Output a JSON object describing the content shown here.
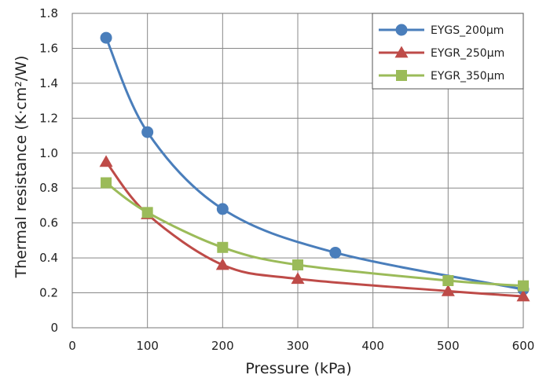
{
  "chart_data": {
    "type": "line",
    "xlabel": "Pressure (kPa)",
    "ylabel": "Thermal resistance (K·cm²/W)",
    "xlim": [
      0,
      600
    ],
    "ylim": [
      0,
      1.8
    ],
    "xticks": [
      "0",
      "100",
      "200",
      "300",
      "400",
      "500",
      "600"
    ],
    "yticks": [
      "0",
      "0.2",
      "0.4",
      "0.6",
      "0.8",
      "1.0",
      "1.2",
      "1.4",
      "1.6",
      "1.8"
    ],
    "grid": true,
    "legend_position": "top-right",
    "series": [
      {
        "name": "EYGS_200μm",
        "color": "#4a7ebb",
        "marker": "circle",
        "x": [
          45,
          100,
          200,
          350,
          600
        ],
        "y": [
          1.66,
          1.12,
          0.68,
          0.43,
          0.22
        ]
      },
      {
        "name": "EYGR_250μm",
        "color": "#be4b48",
        "marker": "triangle",
        "x": [
          45,
          100,
          200,
          300,
          500,
          600
        ],
        "y": [
          0.95,
          0.65,
          0.36,
          0.28,
          0.21,
          0.18
        ]
      },
      {
        "name": "EYGR_350μm",
        "color": "#9bbb59",
        "marker": "square",
        "x": [
          45,
          100,
          200,
          300,
          500,
          600
        ],
        "y": [
          0.83,
          0.66,
          0.46,
          0.36,
          0.27,
          0.24
        ]
      }
    ]
  }
}
